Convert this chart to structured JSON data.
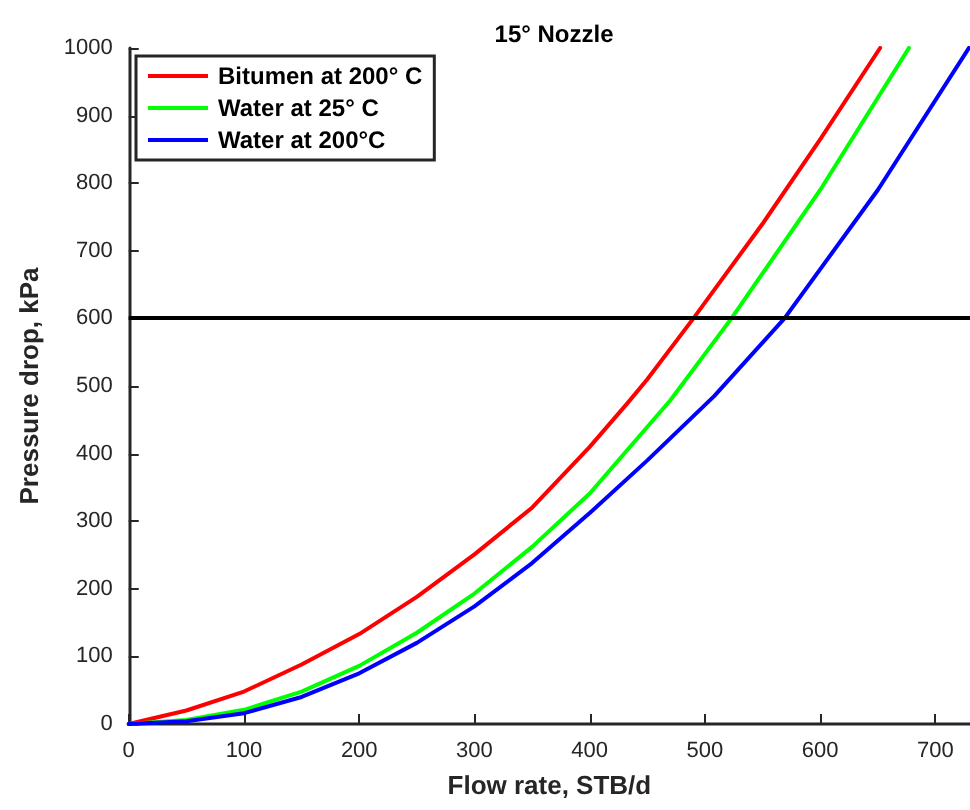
{
  "chart_data": {
    "type": "line",
    "title": "15° Nozzle",
    "xlabel": "Flow rate, STB/d",
    "ylabel": "Pressure drop, kPa",
    "xlim": [
      0,
      730
    ],
    "xticks": [
      0,
      100,
      200,
      300,
      400,
      500,
      600,
      700
    ],
    "ylim": [
      0,
      1000
    ],
    "yticks": [
      0,
      100,
      200,
      300,
      400,
      500,
      600,
      700,
      800,
      900,
      1000
    ],
    "grid": false,
    "legend": "top left",
    "marker": "none",
    "line_style": "solid",
    "series": [
      {
        "name": "Bitumen at 200° C",
        "color": "#ff0000",
        "x": [
          0,
          50,
          100,
          150,
          200,
          250,
          300,
          350,
          400,
          433,
          450,
          490,
          550,
          600,
          652
        ],
        "values": [
          0,
          20,
          48,
          88,
          133,
          188,
          251,
          320,
          410,
          475,
          510,
          600,
          740,
          865,
          1000
        ]
      },
      {
        "name": "Water at 25° C",
        "color": "#00ff00",
        "x": [
          0,
          50,
          100,
          150,
          200,
          250,
          300,
          350,
          400,
          470,
          523,
          600,
          677
        ],
        "values": [
          0,
          6,
          21,
          48,
          86,
          135,
          193,
          262,
          341,
          479,
          600,
          790,
          1000
        ]
      },
      {
        "name": "Water at 200°C",
        "color": "#0000ff",
        "x": [
          0,
          50,
          100,
          150,
          200,
          250,
          300,
          350,
          400,
          450,
          508,
          569,
          650,
          729
        ],
        "values": [
          0,
          4,
          16,
          40,
          75,
          120,
          174,
          238,
          312,
          390,
          485,
          600,
          790,
          1000
        ]
      }
    ],
    "ref_lines": [
      {
        "axis": "y",
        "value": 600,
        "color": "#000000",
        "line_style": "solid"
      }
    ]
  }
}
